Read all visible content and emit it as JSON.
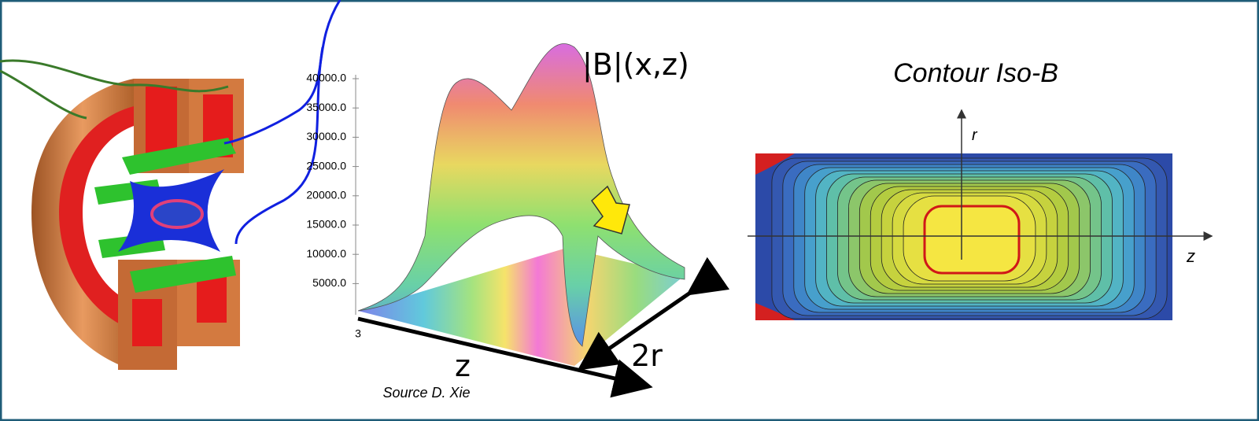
{
  "magnetic_field_figure": {
    "surface_plot": {
      "title": "|B|(x,z)",
      "axis_tick_labels": [
        "40000.0",
        "35000.0",
        "30000.0",
        "25000.0",
        "20000.0",
        "15000.0",
        "10000.0",
        "5000.0"
      ],
      "corner_label": "3",
      "z_label": "z",
      "width_label": "2r",
      "source": "Source D. Xie"
    },
    "contour_plot": {
      "title": "Contour Iso-B",
      "vertical_axis_label": "r",
      "horizontal_axis_label": "z"
    }
  }
}
